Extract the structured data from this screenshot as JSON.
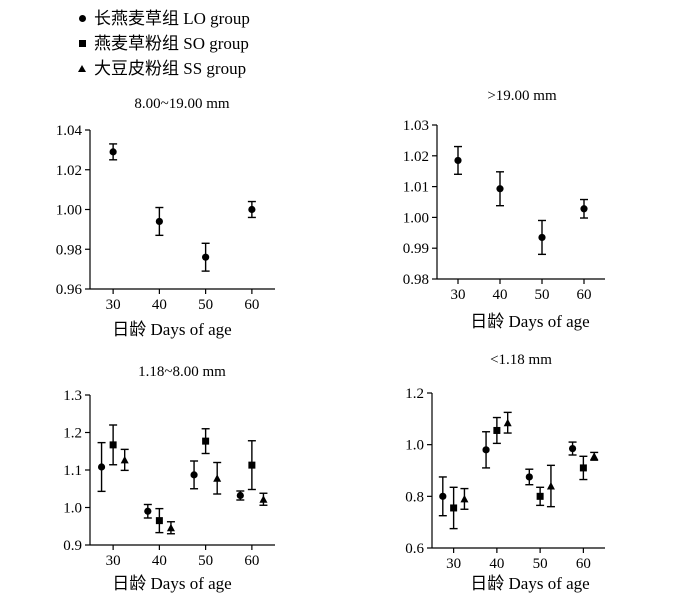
{
  "legend": {
    "items": [
      {
        "label": "长燕麦草组 LO group",
        "marker": "circle"
      },
      {
        "label": "燕麦草粉组 SO group",
        "marker": "square"
      },
      {
        "label": "大豆皮粉组 SS group",
        "marker": "triangle"
      }
    ]
  },
  "chart_data": [
    {
      "type": "scatter",
      "title": "8.00~19.00 mm",
      "xlabel": "日龄  Days of age",
      "ylabel": "",
      "x_ticks": [
        30,
        40,
        50,
        60
      ],
      "xlim": [
        25,
        65
      ],
      "y_ticks": [
        0.96,
        0.98,
        1.0,
        1.02,
        1.04
      ],
      "y_tick_labels": [
        "0.96",
        "0.98",
        "1.00",
        "1.02",
        "1.04"
      ],
      "ylim": [
        0.96,
        1.04
      ],
      "series": [
        {
          "marker": "circle",
          "points": [
            {
              "x": 30,
              "y": 1.029,
              "err": 0.004
            },
            {
              "x": 40,
              "y": 0.994,
              "err": 0.007
            },
            {
              "x": 50,
              "y": 0.976,
              "err": 0.007
            },
            {
              "x": 60,
              "y": 1.0,
              "err": 0.004
            }
          ]
        }
      ]
    },
    {
      "type": "scatter",
      "title": ">19.00 mm",
      "xlabel": "日龄  Days of age",
      "ylabel": "",
      "x_ticks": [
        30,
        40,
        50,
        60
      ],
      "xlim": [
        25,
        65
      ],
      "y_ticks": [
        0.98,
        0.99,
        1.0,
        1.01,
        1.02,
        1.03
      ],
      "y_tick_labels": [
        "0.98",
        "0.99",
        "1.00",
        "1.01",
        "1.02",
        "1.03"
      ],
      "ylim": [
        0.98,
        1.03
      ],
      "series": [
        {
          "marker": "circle",
          "points": [
            {
              "x": 30,
              "y": 1.0185,
              "err": 0.0045
            },
            {
              "x": 40,
              "y": 1.0093,
              "err": 0.0055
            },
            {
              "x": 50,
              "y": 0.9935,
              "err": 0.0055
            },
            {
              "x": 60,
              "y": 1.0028,
              "err": 0.003
            }
          ]
        }
      ]
    },
    {
      "type": "scatter",
      "title": "1.18~8.00 mm",
      "xlabel": "日龄  Days of age",
      "ylabel": "",
      "x_ticks": [
        30,
        40,
        50,
        60
      ],
      "xlim": [
        25,
        65
      ],
      "y_ticks": [
        0.9,
        1.0,
        1.1,
        1.2,
        1.3
      ],
      "y_tick_labels": [
        "0.9",
        "1.0",
        "1.1",
        "1.2",
        "1.3"
      ],
      "ylim": [
        0.9,
        1.3
      ],
      "series": [
        {
          "marker": "circle",
          "points": [
            {
              "x": 27.5,
              "y": 1.108,
              "err": 0.065
            },
            {
              "x": 37.5,
              "y": 0.99,
              "err": 0.018
            },
            {
              "x": 47.5,
              "y": 1.087,
              "err": 0.037
            },
            {
              "x": 57.5,
              "y": 1.032,
              "err": 0.012
            }
          ]
        },
        {
          "marker": "square",
          "points": [
            {
              "x": 30,
              "y": 1.167,
              "err": 0.053
            },
            {
              "x": 40,
              "y": 0.965,
              "err": 0.032
            },
            {
              "x": 50,
              "y": 1.177,
              "err": 0.033
            },
            {
              "x": 60,
              "y": 1.113,
              "err": 0.065
            }
          ]
        },
        {
          "marker": "triangle",
          "points": [
            {
              "x": 32.5,
              "y": 1.127,
              "err": 0.028
            },
            {
              "x": 42.5,
              "y": 0.946,
              "err": 0.016
            },
            {
              "x": 52.5,
              "y": 1.078,
              "err": 0.042
            },
            {
              "x": 62.5,
              "y": 1.022,
              "err": 0.016
            }
          ]
        }
      ]
    },
    {
      "type": "scatter",
      "title": "<1.18 mm",
      "xlabel": "日龄  Days of age",
      "ylabel": "",
      "x_ticks": [
        30,
        40,
        50,
        60
      ],
      "xlim": [
        25,
        65
      ],
      "y_ticks": [
        0.6,
        0.8,
        1.0,
        1.2
      ],
      "y_tick_labels": [
        "0.6",
        "0.8",
        "1.0",
        "1.2"
      ],
      "ylim": [
        0.6,
        1.2
      ],
      "series": [
        {
          "marker": "circle",
          "points": [
            {
              "x": 27.5,
              "y": 0.8,
              "err": 0.075
            },
            {
              "x": 37.5,
              "y": 0.98,
              "err": 0.07
            },
            {
              "x": 47.5,
              "y": 0.875,
              "err": 0.03
            },
            {
              "x": 57.5,
              "y": 0.985,
              "err": 0.025
            }
          ]
        },
        {
          "marker": "square",
          "points": [
            {
              "x": 30,
              "y": 0.755,
              "err": 0.08
            },
            {
              "x": 40,
              "y": 1.055,
              "err": 0.05
            },
            {
              "x": 50,
              "y": 0.8,
              "err": 0.035
            },
            {
              "x": 60,
              "y": 0.91,
              "err": 0.045
            }
          ]
        },
        {
          "marker": "triangle",
          "points": [
            {
              "x": 32.5,
              "y": 0.79,
              "err": 0.04
            },
            {
              "x": 42.5,
              "y": 1.085,
              "err": 0.04
            },
            {
              "x": 52.5,
              "y": 0.84,
              "err": 0.08
            },
            {
              "x": 62.5,
              "y": 0.955,
              "err": 0.015
            }
          ]
        }
      ]
    }
  ]
}
